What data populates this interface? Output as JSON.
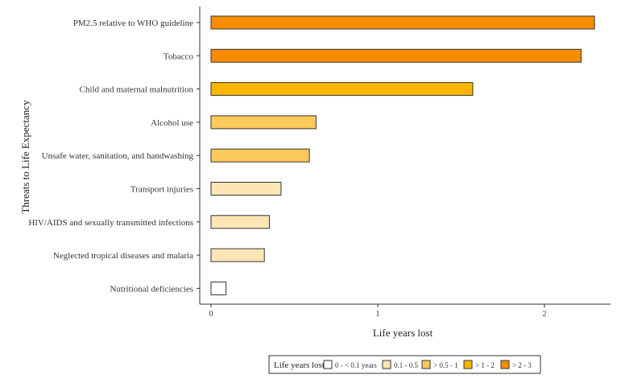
{
  "chart_data": {
    "type": "bar",
    "orientation": "horizontal",
    "xlabel": "Life years lost",
    "ylabel": "Threats to Life Expectancy",
    "xlim": [
      0,
      2.4
    ],
    "xticks": [
      0,
      1,
      2
    ],
    "grid": false,
    "categories": [
      "PM2.5 relative to WHO guideline",
      "Tobacco",
      "Child and maternal malnutrition",
      "Alcohol use",
      "Unsafe water, sanitation, and handwashing",
      "Transport injuries",
      "HIV/AIDS and sexually transmitted infections",
      "Neglected tropical diseases and malaria",
      "Nutritional deficiencies"
    ],
    "values": [
      2.3,
      2.22,
      1.57,
      0.63,
      0.59,
      0.42,
      0.35,
      0.32,
      0.09
    ],
    "classes": [
      4,
      4,
      3,
      2,
      2,
      1,
      1,
      1,
      0
    ],
    "legend": {
      "title": "Life years lost",
      "placement": "bottom",
      "entries": [
        {
          "label": "0 - < 0.1 years",
          "color": "#ffffff"
        },
        {
          "label": "0.1 - 0.5",
          "color": "#fde6b4"
        },
        {
          "label": "> 0.5 - 1",
          "color": "#fcc95a"
        },
        {
          "label": "> 1 - 2",
          "color": "#f9b500"
        },
        {
          "label": "> 2 - 3",
          "color": "#f78c00"
        }
      ]
    }
  }
}
